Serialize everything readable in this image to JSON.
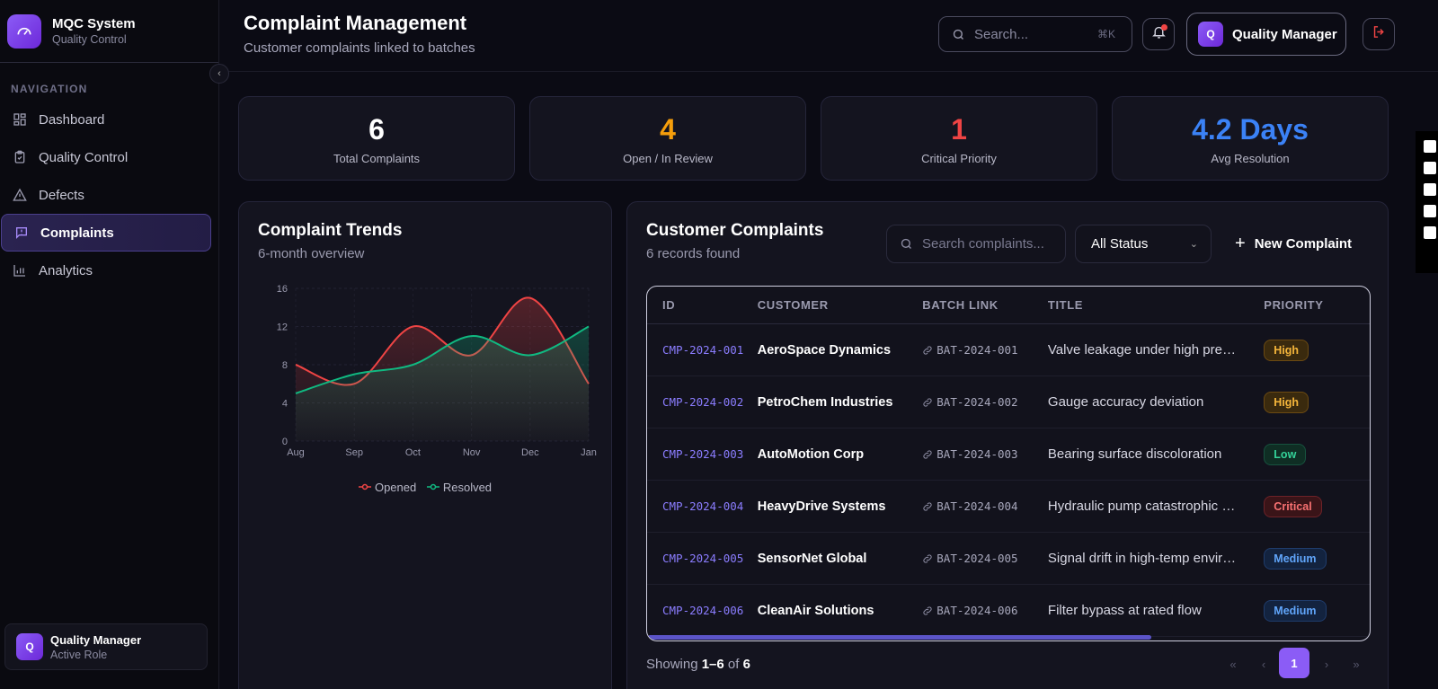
{
  "brand": {
    "title": "MQC System",
    "subtitle": "Quality Control"
  },
  "sidebar": {
    "heading": "NAVIGATION",
    "items": [
      {
        "label": "Dashboard",
        "icon": "grid-icon"
      },
      {
        "label": "Quality Control",
        "icon": "clipboard-check-icon"
      },
      {
        "label": "Defects",
        "icon": "warning-triangle-icon"
      },
      {
        "label": "Complaints",
        "icon": "message-alert-icon",
        "active": true
      },
      {
        "label": "Analytics",
        "icon": "bar-chart-icon"
      }
    ],
    "role": {
      "avatar": "Q",
      "name": "Quality Manager",
      "subtitle": "Active Role"
    }
  },
  "header": {
    "title": "Complaint Management",
    "subtitle": "Customer complaints linked to batches",
    "search_placeholder": "Search...",
    "search_shortcut": "⌘K",
    "user": {
      "avatar": "Q",
      "name": "Quality Manager"
    }
  },
  "stats": [
    {
      "value": "6",
      "label": "Total Complaints",
      "color": "#ffffff"
    },
    {
      "value": "4",
      "label": "Open / In Review",
      "color": "#f59e0b"
    },
    {
      "value": "1",
      "label": "Critical Priority",
      "color": "#ef4444"
    },
    {
      "value": "4.2 Days",
      "label": "Avg Resolution",
      "color": "#3b82f6"
    }
  ],
  "trends": {
    "title": "Complaint Trends",
    "subtitle": "6-month overview"
  },
  "chart_data": {
    "type": "area",
    "categories": [
      "Aug",
      "Sep",
      "Oct",
      "Nov",
      "Dec",
      "Jan"
    ],
    "series": [
      {
        "name": "Opened",
        "values": [
          8,
          6,
          12,
          9,
          15,
          6
        ],
        "color": "#ef4444"
      },
      {
        "name": "Resolved",
        "values": [
          5,
          7,
          8,
          11,
          9,
          12
        ],
        "color": "#10b981"
      }
    ],
    "yticks": [
      "0",
      "4",
      "8",
      "12",
      "16"
    ],
    "ylim": [
      0,
      16
    ],
    "legend": "bottom"
  },
  "complaints": {
    "title": "Customer Complaints",
    "count_text": "6 records found",
    "search_placeholder": "Search complaints...",
    "status_filter": "All Status",
    "new_button": "New Complaint",
    "columns": [
      "ID",
      "CUSTOMER",
      "BATCH LINK",
      "TITLE",
      "PRIORITY"
    ],
    "rows": [
      {
        "id": "CMP-2024-001",
        "customer": "AeroSpace Dynamics",
        "batch": "BAT-2024-001",
        "title": "Valve leakage under high pressure",
        "priority": "High"
      },
      {
        "id": "CMP-2024-002",
        "customer": "PetroChem Industries",
        "batch": "BAT-2024-002",
        "title": "Gauge accuracy deviation",
        "priority": "High"
      },
      {
        "id": "CMP-2024-003",
        "customer": "AutoMotion Corp",
        "batch": "BAT-2024-003",
        "title": "Bearing surface discoloration",
        "priority": "Low"
      },
      {
        "id": "CMP-2024-004",
        "customer": "HeavyDrive Systems",
        "batch": "BAT-2024-004",
        "title": "Hydraulic pump catastrophic failure",
        "priority": "Critical"
      },
      {
        "id": "CMP-2024-005",
        "customer": "SensorNet Global",
        "batch": "BAT-2024-005",
        "title": "Signal drift in high-temp environment",
        "priority": "Medium"
      },
      {
        "id": "CMP-2024-006",
        "customer": "CleanAir Solutions",
        "batch": "BAT-2024-006",
        "title": "Filter bypass at rated flow",
        "priority": "Medium"
      }
    ],
    "priority_colors": {
      "High": {
        "fg": "#f5b63b",
        "bg": "#3a2a0e",
        "border": "#6b4a12"
      },
      "Low": {
        "fg": "#34d399",
        "bg": "#0f2e24",
        "border": "#17533f"
      },
      "Critical": {
        "fg": "#f87171",
        "bg": "#3a1418",
        "border": "#6d2228"
      },
      "Medium": {
        "fg": "#60a5fa",
        "bg": "#13233f",
        "border": "#1f3c6c"
      }
    },
    "footer": {
      "prefix": "Showing",
      "range": "1–6",
      "of": "of",
      "total": "6"
    },
    "pagination": {
      "first": "«",
      "prev": "‹",
      "current": "1",
      "next": "›",
      "last": "»"
    }
  }
}
